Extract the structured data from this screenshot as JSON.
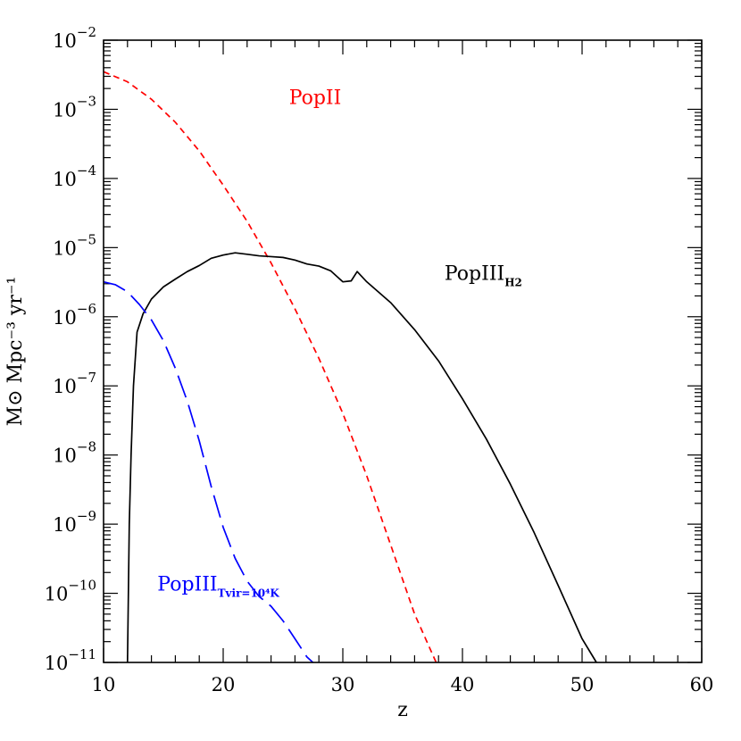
{
  "chart_data": {
    "type": "line",
    "title": "",
    "xlabel": "z",
    "ylabel": "M⊙ Mpc⁻³ yr⁻¹",
    "xlim": [
      10,
      60
    ],
    "ylim": [
      1e-11,
      0.01
    ],
    "yscale": "log",
    "xticks": [
      10,
      20,
      30,
      40,
      50,
      60
    ],
    "xtick_labels": [
      "10",
      "20",
      "30",
      "40",
      "50",
      "60"
    ],
    "yticks": [
      {
        "base": "10",
        "exp": "−11",
        "value": 1e-11
      },
      {
        "base": "10",
        "exp": "−10",
        "value": 1e-10
      },
      {
        "base": "10",
        "exp": "−9",
        "value": 1e-09
      },
      {
        "base": "10",
        "exp": "−8",
        "value": 1e-08
      },
      {
        "base": "10",
        "exp": "−7",
        "value": 1e-07
      },
      {
        "base": "10",
        "exp": "−6",
        "value": 1e-06
      },
      {
        "base": "10",
        "exp": "−5",
        "value": 1e-05
      },
      {
        "base": "10",
        "exp": "−4",
        "value": 0.0001
      },
      {
        "base": "10",
        "exp": "−3",
        "value": 0.001
      },
      {
        "base": "10",
        "exp": "−2",
        "value": 0.01
      }
    ],
    "grid": false,
    "series": [
      {
        "name": "PopII",
        "color": "#ff0000",
        "dash": "short-dash",
        "label_main": "PopII",
        "label_sub": "",
        "points": [
          [
            10,
            0.0035
          ],
          [
            12,
            0.0025
          ],
          [
            14,
            0.0014
          ],
          [
            16,
            0.00065
          ],
          [
            18,
            0.00025
          ],
          [
            20,
            8e-05
          ],
          [
            22,
            2.4e-05
          ],
          [
            24,
            6e-06
          ],
          [
            26,
            1.3e-06
          ],
          [
            28,
            2.5e-07
          ],
          [
            30,
            4e-08
          ],
          [
            32,
            5e-09
          ],
          [
            34,
            5e-10
          ],
          [
            36,
            5e-11
          ],
          [
            37.8,
            1e-11
          ]
        ]
      },
      {
        "name": "PopIII_H2",
        "color": "#000000",
        "dash": "solid",
        "label_main": "PopIII",
        "label_sub": "H2",
        "points": [
          [
            12.0,
            1e-11
          ],
          [
            12.15,
            1e-09
          ],
          [
            12.3,
            1e-08
          ],
          [
            12.5,
            1e-07
          ],
          [
            12.8,
            6e-07
          ],
          [
            13.3,
            1.1e-06
          ],
          [
            14,
            1.8e-06
          ],
          [
            15,
            2.7e-06
          ],
          [
            16,
            3.5e-06
          ],
          [
            17,
            4.5e-06
          ],
          [
            18,
            5.5e-06
          ],
          [
            19,
            7e-06
          ],
          [
            20,
            7.8e-06
          ],
          [
            21,
            8.4e-06
          ],
          [
            22,
            8e-06
          ],
          [
            23,
            7.6e-06
          ],
          [
            24,
            7.4e-06
          ],
          [
            25,
            7.2e-06
          ],
          [
            26,
            6.6e-06
          ],
          [
            27,
            5.8e-06
          ],
          [
            28,
            5.4e-06
          ],
          [
            29,
            4.6e-06
          ],
          [
            30,
            3.2e-06
          ],
          [
            30.7,
            3.3e-06
          ],
          [
            31.2,
            4.5e-06
          ],
          [
            32,
            3.2e-06
          ],
          [
            34,
            1.6e-06
          ],
          [
            36,
            6.5e-07
          ],
          [
            38,
            2.3e-07
          ],
          [
            40,
            6.5e-08
          ],
          [
            42,
            1.7e-08
          ],
          [
            44,
            3.8e-09
          ],
          [
            46,
            7.5e-10
          ],
          [
            48,
            1.3e-10
          ],
          [
            50,
            2.2e-11
          ],
          [
            51.2,
            1e-11
          ]
        ]
      },
      {
        "name": "PopIII_Tvir=10^4K",
        "color": "#0000ff",
        "dash": "long-dash",
        "label_main": "PopIII",
        "label_sub": "Tvir=10⁴K",
        "points": [
          [
            10,
            3.2e-06
          ],
          [
            11,
            2.9e-06
          ],
          [
            12,
            2.3e-06
          ],
          [
            13,
            1.5e-06
          ],
          [
            14,
            9e-07
          ],
          [
            15,
            4.5e-07
          ],
          [
            16,
            1.8e-07
          ],
          [
            17,
            6e-08
          ],
          [
            18,
            1.6e-08
          ],
          [
            19,
            3.5e-09
          ],
          [
            20,
            9e-10
          ],
          [
            21,
            3.2e-10
          ],
          [
            22,
            1.5e-10
          ],
          [
            23,
            9e-11
          ],
          [
            24,
            6.5e-11
          ],
          [
            25,
            4e-11
          ],
          [
            26,
            2.2e-11
          ],
          [
            27,
            1.2e-11
          ],
          [
            27.5,
            1e-11
          ]
        ]
      }
    ],
    "annotations": [
      {
        "series": "PopII",
        "main": "PopII",
        "sub": "",
        "at": [
          25.5,
          0.0012
        ]
      },
      {
        "series": "PopIII_H2",
        "main": "PopIII",
        "sub": "H2",
        "at": [
          38.5,
          3.4e-06
        ]
      },
      {
        "series": "PopIII_Tvir=10^4K",
        "main": "PopIII",
        "sub": "Tvir=10⁴K",
        "at": [
          14.5,
          1.1e-10
        ]
      }
    ]
  }
}
